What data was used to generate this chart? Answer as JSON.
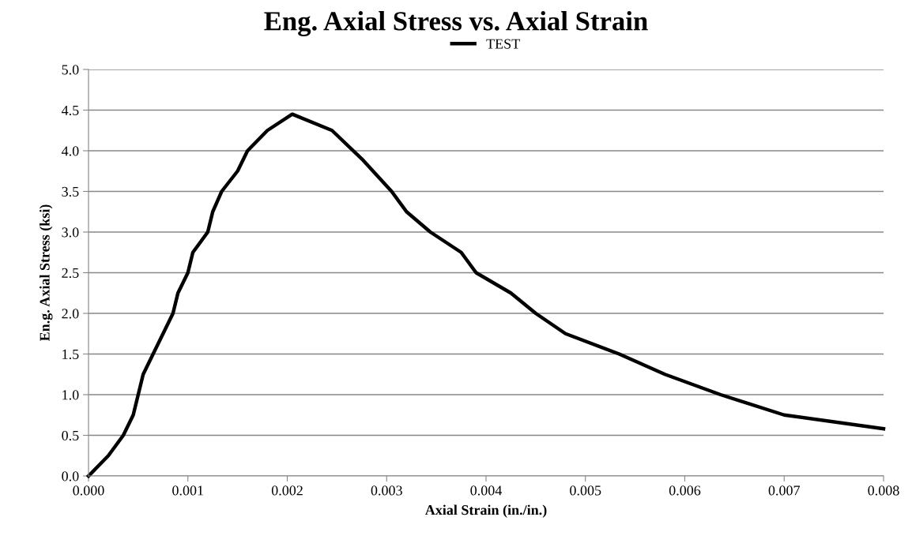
{
  "chart_data": {
    "type": "line",
    "title": "Eng. Axial Stress vs. Axial Strain",
    "xlabel": "Axial Strain (in./in.)",
    "ylabel": "En.g. Axial Stress (ksi)",
    "x": [
      0,
      0.0002,
      0.00035,
      0.00045,
      0.00055,
      0.00085,
      0.0009,
      0.001,
      0.00105,
      0.0012,
      0.00125,
      0.00134,
      0.0015,
      0.0016,
      0.0018,
      0.00205,
      0.00245,
      0.00275,
      0.00305,
      0.0032,
      0.00344,
      0.00375,
      0.0039,
      0.00425,
      0.0045,
      0.0048,
      0.00534,
      0.0058,
      0.00636,
      0.007,
      0.008
    ],
    "series": [
      {
        "name": "TEST",
        "color": "#000000",
        "values": [
          0,
          0.25,
          0.5,
          0.75,
          1.25,
          2.0,
          2.25,
          2.5,
          2.75,
          3.0,
          3.25,
          3.5,
          3.75,
          4.0,
          4.25,
          4.45,
          4.25,
          3.9,
          3.5,
          3.25,
          3.0,
          2.75,
          2.5,
          2.25,
          2.0,
          1.75,
          1.5,
          1.25,
          1.0,
          0.75,
          0.58
        ]
      }
    ],
    "xlim": [
      0,
      0.008
    ],
    "xticks": [
      {
        "value": 0,
        "label": "0.000"
      },
      {
        "value": 0.001,
        "label": "0.001"
      },
      {
        "value": 0.002,
        "label": "0.002"
      },
      {
        "value": 0.003,
        "label": "0.003"
      },
      {
        "value": 0.004,
        "label": "0.004"
      },
      {
        "value": 0.005,
        "label": "0.005"
      },
      {
        "value": 0.006,
        "label": "0.006"
      },
      {
        "value": 0.007,
        "label": "0.007"
      },
      {
        "value": 0.008,
        "label": "0.008"
      }
    ],
    "ylim": [
      0,
      5
    ],
    "yticks": [
      {
        "value": 0,
        "label": "0.0"
      },
      {
        "value": 0.5,
        "label": "0.5"
      },
      {
        "value": 1,
        "label": "1.0"
      },
      {
        "value": 1.5,
        "label": "1.5"
      },
      {
        "value": 2,
        "label": "2.0"
      },
      {
        "value": 2.5,
        "label": "2.5"
      },
      {
        "value": 3,
        "label": "3.0"
      },
      {
        "value": 3.5,
        "label": "3.5"
      },
      {
        "value": 4,
        "label": "4.0"
      },
      {
        "value": 4.5,
        "label": "4.5"
      },
      {
        "value": 5,
        "label": "5.0"
      }
    ],
    "grid": "y",
    "legend": "top",
    "line_style": "solid",
    "marker": "none"
  }
}
